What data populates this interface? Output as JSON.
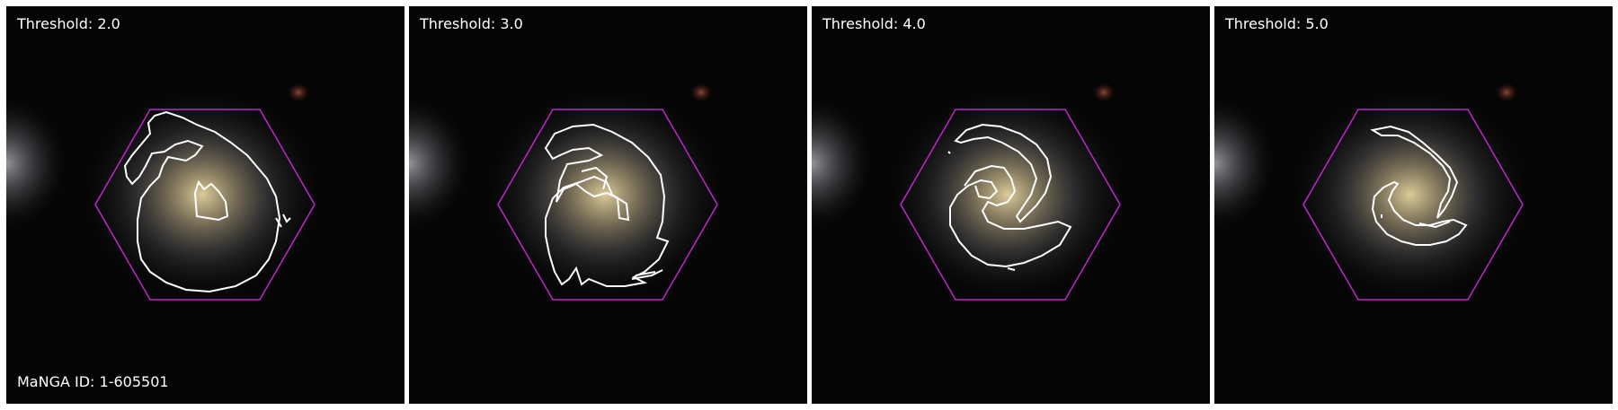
{
  "panels": [
    {
      "threshold_label": "Threshold: 2.0"
    },
    {
      "threshold_label": "Threshold: 3.0"
    },
    {
      "threshold_label": "Threshold: 4.0"
    },
    {
      "threshold_label": "Threshold: 5.0"
    }
  ],
  "manga_id_label": "MaNGA ID: 1-605501",
  "colors": {
    "hexagon": "#c026c7",
    "contour": "#ffffff",
    "background": "#050505"
  }
}
